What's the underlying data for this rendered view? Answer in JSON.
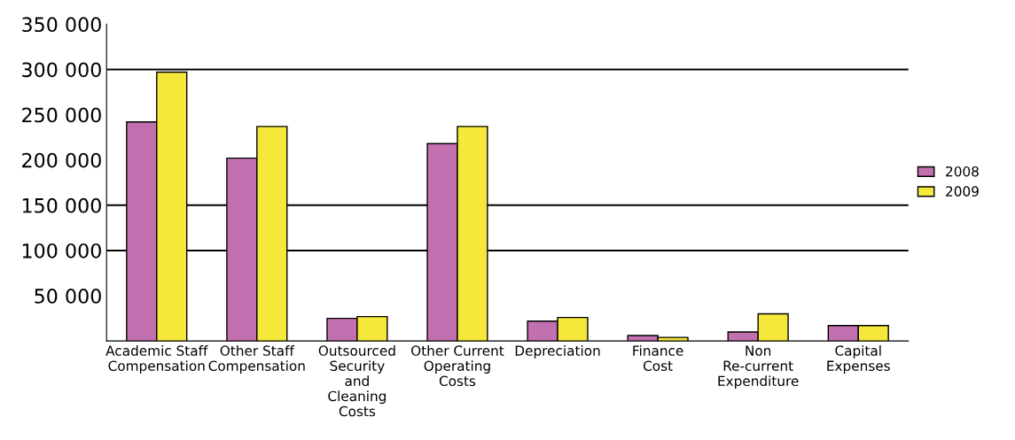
{
  "chart_data": {
    "type": "bar",
    "categories": [
      "Academic Staff\nCompensation",
      "Other Staff\nCompensation",
      "Outsourced\nSecurity\nand\nCleaning\nCosts",
      "Other Current\nOperating\nCosts",
      "Depreciation",
      "Finance\nCost",
      "Non\nRe-current\nExpenditure",
      "Capital\nExpenses"
    ],
    "series": [
      {
        "name": "2008",
        "color": "#c270b0",
        "values": [
          242000,
          202000,
          25000,
          218000,
          22000,
          6000,
          10000,
          17000
        ]
      },
      {
        "name": "2009",
        "color": "#f5e83a",
        "values": [
          297000,
          237000,
          27000,
          237000,
          26000,
          4000,
          30000,
          17000
        ]
      }
    ],
    "ylim": [
      0,
      350000
    ],
    "yticks": [
      {
        "value": 50000,
        "label": "50 000"
      },
      {
        "value": 100000,
        "label": "100 000"
      },
      {
        "value": 150000,
        "label": "150 000"
      },
      {
        "value": 200000,
        "label": "200 000"
      },
      {
        "value": 250000,
        "label": "250 000"
      },
      {
        "value": 300000,
        "label": "300 000"
      },
      {
        "value": 350000,
        "label": "350 000"
      }
    ],
    "ref_lines": [
      {
        "axis": "y",
        "value": 300000,
        "color": "#000000"
      },
      {
        "axis": "y",
        "value": 150000,
        "color": "#000000"
      },
      {
        "axis": "y",
        "value": 100000,
        "color": "#000000"
      }
    ],
    "legend": "right"
  }
}
